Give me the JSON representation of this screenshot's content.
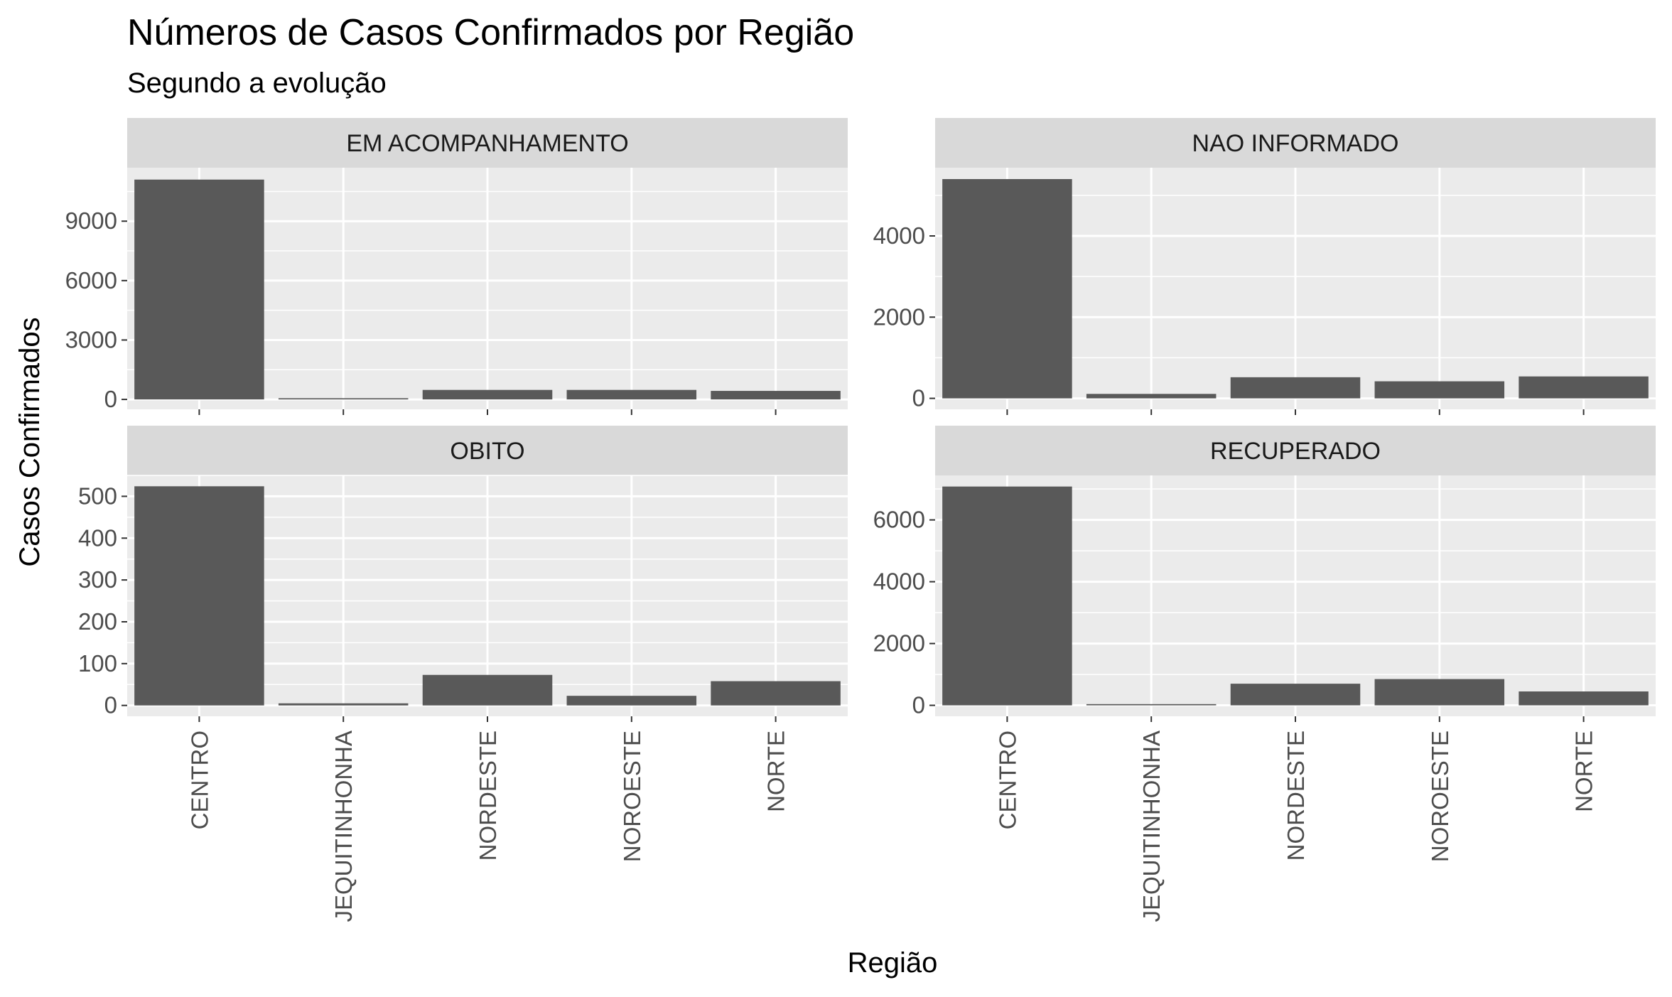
{
  "chart_data": {
    "type": "bar",
    "title": "Números de Casos Confirmados por Região",
    "subtitle": "Segundo a evolução",
    "xlabel": "Região",
    "ylabel": "Casos Confirmados",
    "categories": [
      "CENTRO",
      "JEQUITINHONHA",
      "NORDESTE",
      "NOROESTE",
      "NORTE"
    ],
    "grid": true,
    "legend": "none",
    "bar_color": "#595959",
    "panel_background": "#ebebeb",
    "strip_background": "#d9d9d9",
    "facets": [
      {
        "name": "EM ACOMPANHAMENTO",
        "values": [
          11100,
          60,
          480,
          480,
          430
        ],
        "ylim": [
          -500,
          11700
        ],
        "yticks": [
          0,
          3000,
          6000,
          9000
        ],
        "yticklabels": [
          "0",
          "3000",
          "6000",
          "9000"
        ]
      },
      {
        "name": "NAO INFORMADO",
        "values": [
          5400,
          110,
          520,
          420,
          540
        ],
        "ylim": [
          -270,
          5680
        ],
        "yticks": [
          0,
          2000,
          4000
        ],
        "yticklabels": [
          "0",
          "2000",
          "4000"
        ]
      },
      {
        "name": "OBITO",
        "values": [
          524,
          5,
          73,
          23,
          58
        ],
        "ylim": [
          -26,
          550
        ],
        "yticks": [
          0,
          100,
          200,
          300,
          400,
          500
        ],
        "yticklabels": [
          "0",
          "100",
          "200",
          "300",
          "400",
          "500"
        ]
      },
      {
        "name": "RECUPERADO",
        "values": [
          7080,
          40,
          700,
          850,
          450
        ],
        "ylim": [
          -355,
          7440
        ],
        "yticks": [
          0,
          2000,
          4000,
          6000
        ],
        "yticklabels": [
          "0",
          "2000",
          "4000",
          "6000"
        ]
      }
    ]
  }
}
